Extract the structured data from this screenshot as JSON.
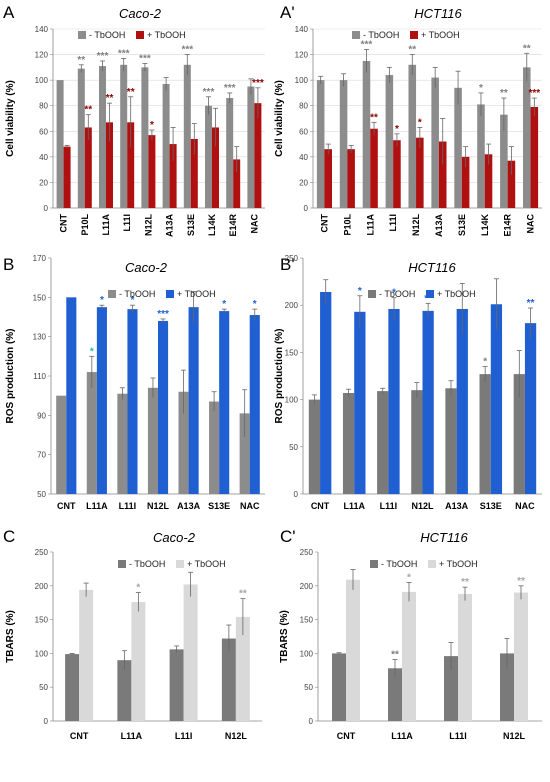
{
  "figure": {
    "legend_minus": "- TbOOH",
    "legend_plus": "+ TbOOH"
  },
  "chart_data": [
    {
      "id": "A",
      "panel_label": "A",
      "title": "Caco-2",
      "type": "bar",
      "ylabel": "Cell viability (%)",
      "ylim": [
        0,
        140
      ],
      "yticks": [
        0,
        20,
        40,
        60,
        80,
        100,
        120,
        140
      ],
      "categories": [
        "CNT",
        "P10L",
        "L11A",
        "L11I",
        "N12L",
        "A13A",
        "S13E",
        "L14K",
        "E14R",
        "NAC"
      ],
      "legend_position": "top-center",
      "colors": {
        "minus": "#8c8c8c",
        "plus": "#b01010",
        "stars_minus": "#7f7f7f",
        "stars_plus": "#8b0000"
      },
      "series": [
        {
          "name": "- TbOOH",
          "values": [
            100,
            109,
            111,
            112,
            110,
            97,
            112,
            80,
            86,
            95
          ],
          "errors": [
            0,
            3,
            4,
            5,
            3,
            5,
            8,
            7,
            4,
            6
          ],
          "stars": [
            "",
            "**",
            "***",
            "***",
            "***",
            "",
            "***",
            "***",
            "***",
            ""
          ]
        },
        {
          "name": "+ TbOOH",
          "values": [
            48,
            63,
            67,
            67,
            57,
            50,
            54,
            63,
            38,
            82
          ],
          "errors": [
            1,
            10,
            15,
            20,
            4,
            13,
            12,
            15,
            10,
            12
          ],
          "stars": [
            "",
            "**",
            "**",
            "**",
            "*",
            "",
            "",
            "",
            "",
            "***"
          ]
        }
      ]
    },
    {
      "id": "A2",
      "panel_label": "A'",
      "title": "HCT116",
      "type": "bar",
      "ylabel": "Cell viability (%)",
      "ylim": [
        0,
        140
      ],
      "yticks": [
        0,
        20,
        40,
        60,
        80,
        100,
        120,
        140
      ],
      "categories": [
        "CNT",
        "P10L",
        "L11A",
        "L11I",
        "N12L",
        "A13A",
        "S13E",
        "L14K",
        "E14R",
        "NAC"
      ],
      "legend_position": "top-center",
      "colors": {
        "minus": "#8c8c8c",
        "plus": "#b01010",
        "stars_minus": "#7f7f7f",
        "stars_plus": "#8b0000"
      },
      "series": [
        {
          "name": "- TbOOH",
          "values": [
            100,
            100,
            115,
            104,
            112,
            102,
            94,
            81,
            73,
            110
          ],
          "errors": [
            3,
            5,
            9,
            6,
            8,
            8,
            13,
            9,
            13,
            11
          ],
          "stars": [
            "",
            "",
            "***",
            "",
            "**",
            "",
            "",
            "*",
            "**",
            "**"
          ]
        },
        {
          "name": "+ TbOOH",
          "values": [
            46,
            46,
            62,
            53,
            55,
            52,
            40,
            42,
            37,
            79
          ],
          "errors": [
            4,
            3,
            5,
            5,
            8,
            18,
            8,
            8,
            11,
            7
          ],
          "stars": [
            "",
            "",
            "**",
            "*",
            "*",
            "",
            "",
            "",
            "",
            "***"
          ]
        }
      ]
    },
    {
      "id": "B",
      "panel_label": "B",
      "title": "Caco-2",
      "type": "bar",
      "ylabel": "ROS production (%)",
      "ylim": [
        50,
        170
      ],
      "yticks": [
        50,
        70,
        90,
        110,
        130,
        150,
        170
      ],
      "categories": [
        "CNT",
        "L11A",
        "L11I",
        "N12L",
        "A13A",
        "S13E",
        "NAC"
      ],
      "legend_position": "top-center",
      "colors": {
        "minus": "#8c8c8c",
        "plus": "#1f5fd1",
        "stars_minus": "#20b2aa",
        "stars_plus": "#1f5fd1"
      },
      "series": [
        {
          "name": "- TbOOH",
          "values": [
            100,
            112,
            101,
            104,
            102,
            97,
            91
          ],
          "errors": [
            0,
            8,
            3,
            5,
            11,
            5,
            12
          ],
          "stars": [
            "",
            "*",
            "",
            "",
            "",
            "",
            ""
          ]
        },
        {
          "name": "+ TbOOH",
          "values": [
            150,
            145,
            144,
            138,
            145,
            143,
            141
          ],
          "errors": [
            0,
            1,
            2,
            1,
            8,
            1,
            3
          ],
          "stars": [
            "",
            "*",
            "*",
            "***",
            "",
            "*",
            "*"
          ]
        }
      ]
    },
    {
      "id": "B2",
      "panel_label": "B'",
      "title": "HCT116",
      "type": "bar",
      "ylabel": "ROS production (%)",
      "ylim": [
        0,
        250
      ],
      "yticks": [
        0,
        50,
        100,
        150,
        200,
        250
      ],
      "categories": [
        "CNT",
        "L11A",
        "L11I",
        "N12L",
        "A13A",
        "S13E",
        "NAC"
      ],
      "legend_position": "top-center",
      "colors": {
        "minus": "#7a7a7a",
        "plus": "#1f5fd1",
        "stars_minus": "#7f7f7f",
        "stars_plus": "#1f5fd1"
      },
      "series": [
        {
          "name": "- TbOOH",
          "values": [
            100,
            107,
            109,
            110,
            112,
            127,
            127
          ],
          "errors": [
            5,
            4,
            3,
            8,
            8,
            8,
            25
          ],
          "stars": [
            "",
            "",
            "",
            "",
            "",
            "*",
            ""
          ]
        },
        {
          "name": "+ TbOOH",
          "values": [
            214,
            193,
            196,
            194,
            196,
            201,
            181
          ],
          "errors": [
            13,
            17,
            12,
            8,
            27,
            27,
            16
          ],
          "stars": [
            "",
            "*",
            "*",
            "**",
            "",
            "",
            "**"
          ]
        }
      ]
    },
    {
      "id": "C",
      "panel_label": "C",
      "title": "Caco-2",
      "type": "bar",
      "ylabel": "TBARS (%)",
      "ylim": [
        0,
        250
      ],
      "yticks": [
        0,
        50,
        100,
        150,
        200,
        250
      ],
      "categories": [
        "CNT",
        "L11A",
        "L11I",
        "N12L"
      ],
      "legend_position": "top-center",
      "colors": {
        "minus": "#7a7a7a",
        "plus": "#d9d9d9",
        "stars_minus": "#8a8a8a",
        "stars_plus": "#a6a6a6"
      },
      "series": [
        {
          "name": "- TbOOH",
          "values": [
            99,
            90,
            106,
            122
          ],
          "errors": [
            1,
            14,
            5,
            20
          ],
          "stars": [
            "",
            "",
            "",
            ""
          ]
        },
        {
          "name": "+ TbOOH",
          "values": [
            194,
            176,
            202,
            154
          ],
          "errors": [
            10,
            14,
            18,
            27
          ],
          "stars": [
            "",
            "*",
            "",
            "**"
          ]
        }
      ]
    },
    {
      "id": "C2",
      "panel_label": "C'",
      "title": "HCT116",
      "type": "bar",
      "ylabel": "TBARS (%)",
      "ylim": [
        0,
        250
      ],
      "yticks": [
        0,
        50,
        100,
        150,
        200,
        250
      ],
      "categories": [
        "CNT",
        "L11A",
        "L11I",
        "N12L"
      ],
      "legend_position": "top-center",
      "colors": {
        "minus": "#7a7a7a",
        "plus": "#d9d9d9",
        "stars_minus": "#7a7a7a",
        "stars_plus": "#a6a6a6"
      },
      "series": [
        {
          "name": "- TbOOH",
          "values": [
            100,
            78,
            96,
            100
          ],
          "errors": [
            1,
            13,
            20,
            22
          ],
          "stars": [
            "",
            "**",
            "",
            ""
          ]
        },
        {
          "name": "+ TbOOH",
          "values": [
            209,
            191,
            188,
            190
          ],
          "errors": [
            15,
            14,
            10,
            10
          ],
          "stars": [
            "",
            "*",
            "**",
            "**"
          ]
        }
      ]
    }
  ]
}
